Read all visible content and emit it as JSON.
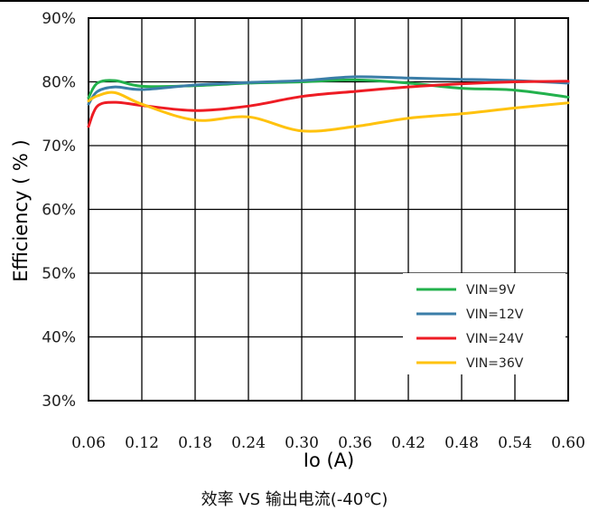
{
  "caption": "效率 VS 输出电流(-40℃)",
  "chart_data": {
    "type": "line",
    "xlabel": "Io (A)",
    "ylabel": "Efficiency ( % )",
    "xlim": [
      0.06,
      0.6
    ],
    "ylim": [
      30,
      90
    ],
    "x_ticks": [
      "0.06",
      "0.12",
      "0.18",
      "0.24",
      "0.30",
      "0.36",
      "0.42",
      "0.48",
      "0.54",
      "0.60"
    ],
    "y_ticks": [
      "30%",
      "40%",
      "50%",
      "60%",
      "70%",
      "80%",
      "90%"
    ],
    "grid": true,
    "legend_position": "bottom-right",
    "series": [
      {
        "name": "VIN=9V",
        "color": "#22b14c",
        "x": [
          0.06,
          0.07,
          0.09,
          0.12,
          0.18,
          0.24,
          0.3,
          0.36,
          0.42,
          0.48,
          0.54,
          0.6
        ],
        "y": [
          77.5,
          79.8,
          80.2,
          79.3,
          79.4,
          79.8,
          80.0,
          80.3,
          79.8,
          79.0,
          78.7,
          77.6
        ]
      },
      {
        "name": "VIN=12V",
        "color": "#3b7ea8",
        "x": [
          0.06,
          0.07,
          0.09,
          0.12,
          0.18,
          0.24,
          0.3,
          0.36,
          0.42,
          0.48,
          0.54,
          0.6
        ],
        "y": [
          76.5,
          78.5,
          79.2,
          78.8,
          79.5,
          79.9,
          80.2,
          80.8,
          80.6,
          80.4,
          80.2,
          79.8
        ]
      },
      {
        "name": "VIN=24V",
        "color": "#ee1c24",
        "x": [
          0.06,
          0.07,
          0.09,
          0.12,
          0.18,
          0.24,
          0.3,
          0.36,
          0.42,
          0.48,
          0.54,
          0.6
        ],
        "y": [
          73.0,
          76.2,
          76.8,
          76.3,
          75.5,
          76.2,
          77.7,
          78.5,
          79.2,
          79.7,
          80.0,
          80.1
        ]
      },
      {
        "name": "VIN=36V",
        "color": "#ffc20e",
        "x": [
          0.06,
          0.07,
          0.09,
          0.12,
          0.18,
          0.24,
          0.3,
          0.36,
          0.42,
          0.48,
          0.54,
          0.6
        ],
        "y": [
          77.0,
          77.8,
          78.3,
          76.5,
          74.0,
          74.5,
          72.3,
          73.0,
          74.3,
          75.0,
          75.9,
          76.7
        ]
      }
    ]
  }
}
